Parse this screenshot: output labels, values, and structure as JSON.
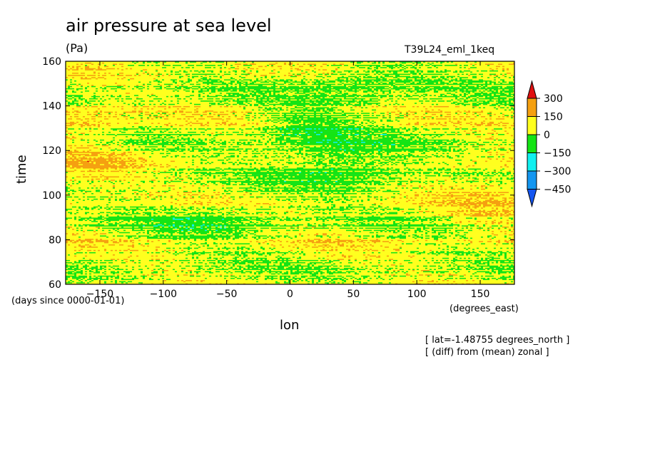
{
  "chart_data": {
    "type": "heatmap",
    "title": "air pressure at sea level",
    "units": "(Pa)",
    "run_name": "T39L24_eml_1keq",
    "xlabel": "lon",
    "ylabel": "time",
    "x_units": "(degrees_east)",
    "y_units": "(days since 0000-01-01)",
    "xlim": [
      -177,
      177
    ],
    "ylim": [
      60,
      160
    ],
    "x_ticks": [
      -150,
      -100,
      -50,
      0,
      50,
      100,
      150
    ],
    "y_ticks": [
      60,
      80,
      100,
      120,
      140,
      160
    ],
    "colorbar": {
      "levels": [
        300,
        150,
        0,
        -150,
        -300,
        -450
      ],
      "colors": [
        "#e01010",
        "#f5a010",
        "#ffff1e",
        "#14e414",
        "#10f0f0",
        "#1496f0",
        "#1455f0"
      ],
      "extend": "both"
    },
    "notes": [
      "[ lat=-1.48755 degrees_north ]",
      "[ (diff) from (mean) zonal ]"
    ]
  }
}
